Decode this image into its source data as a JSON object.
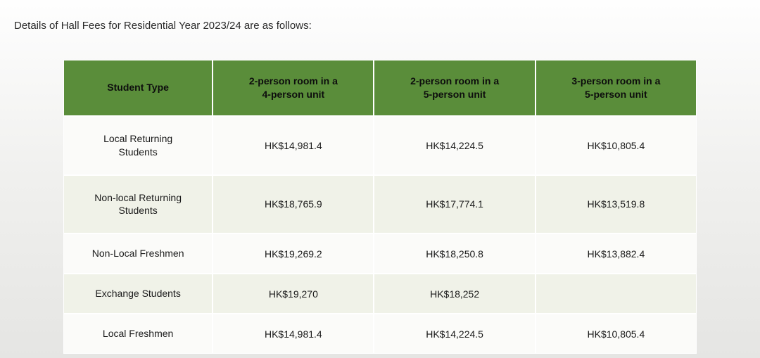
{
  "intro_text": "Details of Hall Fees for Residential Year 2023/24 are as follows:",
  "table": {
    "columns": [
      "Student Type",
      "2-person room in a\n4-person unit",
      "2-person room in a\n5-person unit",
      "3-person room in a\n5-person unit"
    ],
    "rows": [
      {
        "type": "Local Returning\nStudents",
        "c1": "HK$14,981.4",
        "c2": "HK$14,224.5",
        "c3": "HK$10,805.4"
      },
      {
        "type": "Non-local Returning\nStudents",
        "c1": "HK$18,765.9",
        "c2": "HK$17,774.1",
        "c3": "HK$13,519.8"
      },
      {
        "type": "Non-Local Freshmen",
        "c1": "HK$19,269.2",
        "c2": "HK$18,250.8",
        "c3": "HK$13,882.4"
      },
      {
        "type": "Exchange Students",
        "c1": "HK$19,270",
        "c2": "HK$18,252",
        "c3": ""
      },
      {
        "type": "Local Freshmen",
        "c1": "HK$14,981.4",
        "c2": "HK$14,224.5",
        "c3": "HK$10,805.4"
      }
    ],
    "header_bg": "#5a8d3a",
    "row_odd_bg": "#fbfbf9",
    "row_even_bg": "#f0f2e8",
    "border_color": "#ffffff"
  }
}
